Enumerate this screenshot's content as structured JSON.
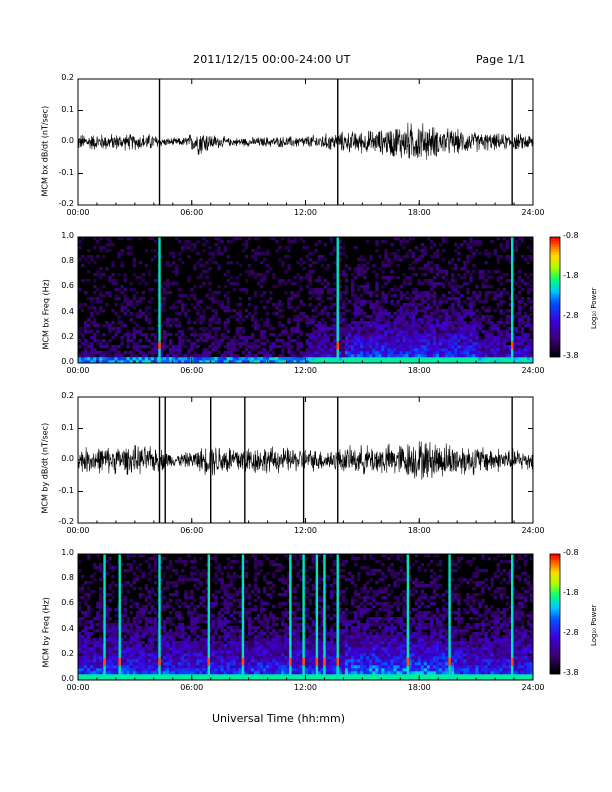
{
  "header": {
    "title": "2011/12/15  00:00-24:00 UT",
    "page": "Page 1/1"
  },
  "footer": {
    "xlabel": "Universal Time (hh:mm)"
  },
  "colorbar": {
    "label": "Log₁₀ Power",
    "ticks": [
      "-0.8",
      "-1.8",
      "-2.8",
      "-3.8"
    ]
  },
  "chart_data": [
    {
      "type": "line",
      "ylabel": "MCM bx dB/dt (nT/sec)",
      "xlim": [
        0,
        24
      ],
      "ylim": [
        -0.2,
        0.2
      ],
      "yticks": [
        "0.2",
        "0.1",
        "0.0",
        "-0.1",
        "-0.2"
      ],
      "xticks": [
        "00:00",
        "06:00",
        "12:00",
        "18:00",
        "24:00"
      ],
      "spikes_hours": [
        4.3,
        13.7,
        22.9
      ],
      "amplitude_profile": [
        [
          0,
          0.02
        ],
        [
          4,
          0.02
        ],
        [
          4.5,
          0.01
        ],
        [
          5.5,
          0.01
        ],
        [
          6.5,
          0.035
        ],
        [
          7,
          0.02
        ],
        [
          8,
          0.01
        ],
        [
          12,
          0.015
        ],
        [
          14,
          0.025
        ],
        [
          16,
          0.03
        ],
        [
          17,
          0.045
        ],
        [
          18,
          0.05
        ],
        [
          19,
          0.035
        ],
        [
          20,
          0.03
        ],
        [
          22,
          0.02
        ],
        [
          24,
          0.02
        ]
      ]
    },
    {
      "type": "heatmap",
      "ylabel": "MCM bx Freq (Hz)",
      "xlim": [
        0,
        24
      ],
      "ylim": [
        0,
        1.0
      ],
      "yticks": [
        "1.0",
        "0.8",
        "0.6",
        "0.4",
        "0.2",
        "0.0"
      ],
      "xticks": [
        "00:00",
        "06:00",
        "12:00",
        "18:00",
        "24:00"
      ],
      "zlim": [
        -3.8,
        -0.8
      ],
      "broadband_hours": [
        4.3,
        13.7,
        22.9
      ]
    },
    {
      "type": "line",
      "ylabel": "MCM by dB/dt (nT/sec)",
      "xlim": [
        0,
        24
      ],
      "ylim": [
        -0.2,
        0.2
      ],
      "yticks": [
        "0.2",
        "0.1",
        "0.0",
        "-0.1",
        "-0.2"
      ],
      "xticks": [
        "00:00",
        "06:00",
        "12:00",
        "18:00",
        "24:00"
      ],
      "spikes_hours": [
        4.3,
        4.6,
        7.0,
        8.8,
        11.9,
        13.7,
        22.9
      ],
      "amplitude_profile": [
        [
          0,
          0.03
        ],
        [
          3,
          0.035
        ],
        [
          4.3,
          0.03
        ],
        [
          5,
          0.015
        ],
        [
          6,
          0.02
        ],
        [
          7,
          0.04
        ],
        [
          9,
          0.035
        ],
        [
          11,
          0.03
        ],
        [
          13,
          0.025
        ],
        [
          15,
          0.035
        ],
        [
          17,
          0.04
        ],
        [
          18,
          0.05
        ],
        [
          20,
          0.04
        ],
        [
          22,
          0.03
        ],
        [
          24,
          0.025
        ]
      ]
    },
    {
      "type": "heatmap",
      "ylabel": "MCM by Freq (Hz)",
      "xlim": [
        0,
        24
      ],
      "ylim": [
        0,
        1.0
      ],
      "yticks": [
        "1.0",
        "0.8",
        "0.6",
        "0.4",
        "0.2",
        "0.0"
      ],
      "xticks": [
        "00:00",
        "06:00",
        "12:00",
        "18:00",
        "24:00"
      ],
      "zlim": [
        -3.8,
        -0.8
      ],
      "broadband_hours": [
        1.4,
        2.2,
        4.3,
        6.9,
        8.7,
        11.2,
        11.9,
        12.6,
        13.0,
        13.7,
        17.4,
        19.6,
        22.9
      ]
    }
  ]
}
